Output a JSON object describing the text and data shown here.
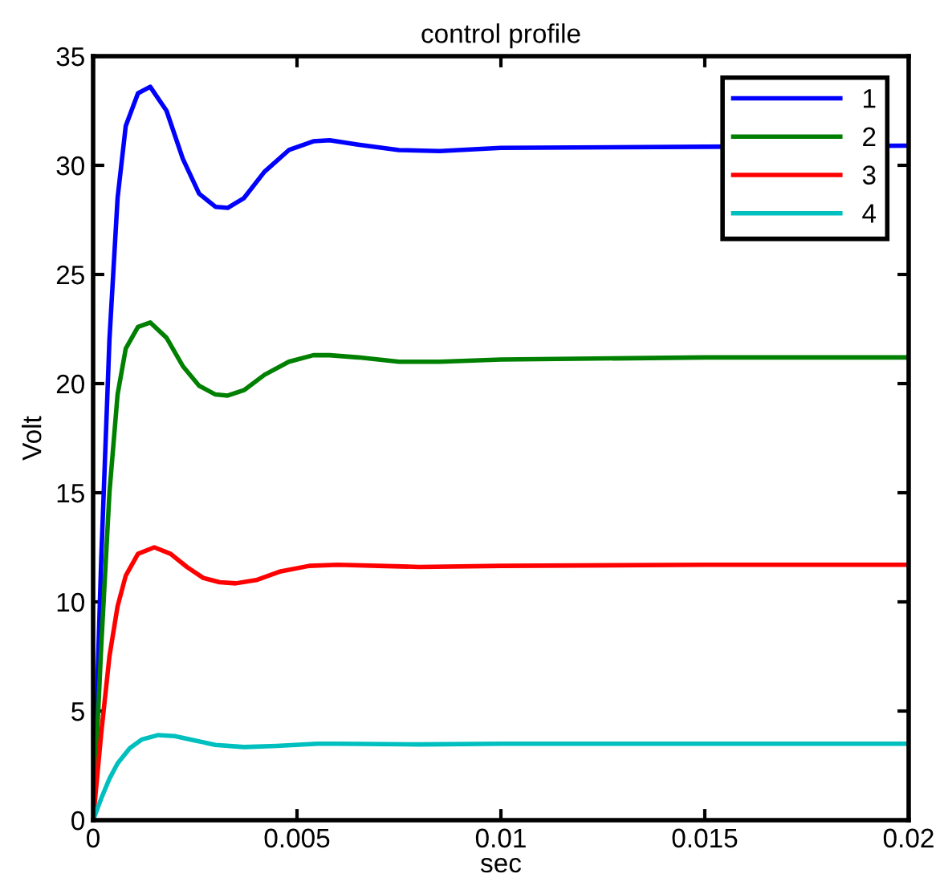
{
  "chart_data": {
    "type": "line",
    "title": "control profile",
    "xlabel": "sec",
    "ylabel": "Volt",
    "xlim": [
      0,
      0.02
    ],
    "ylim": [
      0,
      35
    ],
    "xticks": [
      0,
      0.005,
      0.01,
      0.015,
      0.02
    ],
    "yticks": [
      0,
      5,
      10,
      15,
      20,
      25,
      30,
      35
    ],
    "grid": false,
    "legend": "top right",
    "marker": "none",
    "line_style": "solid",
    "series": [
      {
        "name": "1",
        "color": "#0000ff",
        "x": [
          0,
          0.0002,
          0.0004,
          0.0006,
          0.0008,
          0.0011,
          0.0014,
          0.0018,
          0.0022,
          0.0026,
          0.003,
          0.0033,
          0.0037,
          0.0042,
          0.0048,
          0.0054,
          0.0058,
          0.0065,
          0.0075,
          0.0085,
          0.01,
          0.015,
          0.02
        ],
        "values": [
          0,
          12,
          22,
          28.5,
          31.8,
          33.3,
          33.6,
          32.5,
          30.3,
          28.7,
          28.1,
          28.05,
          28.5,
          29.7,
          30.7,
          31.1,
          31.15,
          30.95,
          30.7,
          30.65,
          30.8,
          30.85,
          30.9
        ]
      },
      {
        "name": "2",
        "color": "#008000",
        "x": [
          0,
          0.0002,
          0.0004,
          0.0006,
          0.0008,
          0.0011,
          0.0014,
          0.0018,
          0.0022,
          0.0026,
          0.003,
          0.0033,
          0.0037,
          0.0042,
          0.0048,
          0.0054,
          0.0058,
          0.0065,
          0.0075,
          0.0085,
          0.01,
          0.015,
          0.02
        ],
        "values": [
          0,
          8,
          15,
          19.5,
          21.6,
          22.6,
          22.8,
          22.1,
          20.8,
          19.9,
          19.5,
          19.45,
          19.7,
          20.4,
          21.0,
          21.3,
          21.3,
          21.2,
          21.0,
          21.0,
          21.1,
          21.2,
          21.2
        ]
      },
      {
        "name": "3",
        "color": "#ff0000",
        "x": [
          0,
          0.0002,
          0.0004,
          0.0006,
          0.0008,
          0.0011,
          0.0015,
          0.0019,
          0.0023,
          0.0027,
          0.0031,
          0.0035,
          0.004,
          0.0046,
          0.0053,
          0.006,
          0.007,
          0.008,
          0.01,
          0.015,
          0.02
        ],
        "values": [
          0,
          4,
          7.5,
          9.8,
          11.2,
          12.2,
          12.5,
          12.2,
          11.6,
          11.1,
          10.9,
          10.85,
          11.0,
          11.4,
          11.65,
          11.7,
          11.65,
          11.6,
          11.65,
          11.7,
          11.7
        ]
      },
      {
        "name": "4",
        "color": "#00bfbf",
        "x": [
          0,
          0.0002,
          0.0004,
          0.0006,
          0.0009,
          0.0012,
          0.0016,
          0.002,
          0.0025,
          0.003,
          0.0037,
          0.0045,
          0.0055,
          0.006,
          0.008,
          0.01,
          0.015,
          0.02
        ],
        "values": [
          0,
          1.0,
          1.9,
          2.6,
          3.3,
          3.7,
          3.9,
          3.85,
          3.65,
          3.45,
          3.35,
          3.4,
          3.5,
          3.5,
          3.47,
          3.5,
          3.5,
          3.5
        ]
      }
    ]
  }
}
